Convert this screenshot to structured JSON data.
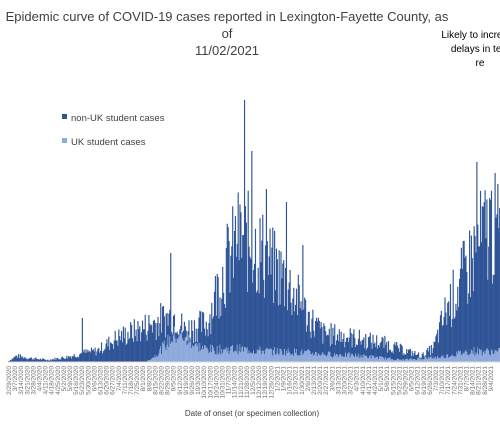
{
  "chart_data": {
    "type": "bar",
    "stacked": true,
    "title_line1": "Epidemic curve of COVID-19 cases reported in Lexington-Fayette County, as of",
    "title_line2": "11/02/2021",
    "annotation_lines": [
      "Likely to increase",
      "delays in test",
      "re"
    ],
    "xlabel": "Date of onset (or specimen collection)",
    "ylabel": "",
    "grid": false,
    "legend_position": "left",
    "series": [
      {
        "name": "non-UK student cases",
        "color": "#2F5597"
      },
      {
        "name": "UK student cases",
        "color": "#8FAADC"
      }
    ],
    "x_tick_labels": [
      "2/29/2020",
      "3/7/2020",
      "3/14/2020",
      "3/21/2020",
      "3/28/2020",
      "4/4/2020",
      "4/11/2020",
      "4/18/2020",
      "4/25/2020",
      "5/2/2020",
      "5/9/2020",
      "5/16/2020",
      "5/23/2020",
      "5/30/2020",
      "6/6/2020",
      "6/13/2020",
      "6/20/2020",
      "6/27/2020",
      "7/4/2020",
      "7/11/2020",
      "7/18/2020",
      "7/25/2020",
      "8/1/2020",
      "8/8/2020",
      "8/15/2020",
      "8/22/2020",
      "8/29/2020",
      "9/5/2020",
      "9/12/2020",
      "9/19/2020",
      "9/26/2020",
      "10/3/2020",
      "10/10/2020",
      "10/17/2020",
      "10/24/2020",
      "10/31/2020",
      "11/7/2020",
      "11/14/2020",
      "11/21/2020",
      "11/28/2020",
      "12/5/2020",
      "12/12/2020",
      "12/19/2020",
      "12/26/2020",
      "1/2/2021",
      "1/9/2021",
      "1/16/2021",
      "1/23/2021",
      "1/30/2021",
      "2/6/2021",
      "2/13/2021",
      "2/20/2021",
      "2/27/2021",
      "3/6/2021",
      "3/13/2021",
      "3/20/2021",
      "3/27/2021",
      "4/3/2021",
      "4/10/2021",
      "4/17/2021",
      "4/24/2021",
      "5/1/2021",
      "5/8/2021",
      "5/15/2021",
      "5/22/2021",
      "5/29/2021",
      "6/5/2021",
      "6/12/2021",
      "6/19/2021",
      "6/26/2021",
      "7/3/2021",
      "7/10/2021",
      "7/17/2021",
      "7/24/2021",
      "7/31/2021",
      "8/7/2021",
      "8/14/2021",
      "8/21/2021",
      "8/28/2021",
      "9/4/2021"
    ],
    "curve_profile": {
      "non_uk": [
        [
          0,
          1
        ],
        [
          8,
          6
        ],
        [
          20,
          4
        ],
        [
          40,
          2
        ],
        [
          60,
          5
        ],
        [
          76,
          9
        ],
        [
          90,
          11
        ],
        [
          110,
          24
        ],
        [
          130,
          31
        ],
        [
          150,
          40
        ],
        [
          170,
          47
        ],
        [
          178,
          32
        ],
        [
          190,
          35
        ],
        [
          202,
          38
        ],
        [
          212,
          72
        ],
        [
          222,
          98
        ],
        [
          234,
          122
        ],
        [
          246,
          118
        ],
        [
          258,
          108
        ],
        [
          270,
          92
        ],
        [
          280,
          84
        ],
        [
          294,
          62
        ],
        [
          305,
          44
        ],
        [
          320,
          28
        ],
        [
          340,
          26
        ],
        [
          360,
          22
        ],
        [
          380,
          19
        ],
        [
          400,
          12
        ],
        [
          420,
          6
        ],
        [
          432,
          14
        ],
        [
          445,
          52
        ],
        [
          460,
          80
        ],
        [
          478,
          118
        ],
        [
          490,
          136
        ],
        [
          500,
          126
        ]
      ],
      "uk": [
        [
          0,
          0
        ],
        [
          140,
          0
        ],
        [
          150,
          7
        ],
        [
          160,
          18
        ],
        [
          168,
          26
        ],
        [
          176,
          28
        ],
        [
          185,
          22
        ],
        [
          196,
          14
        ],
        [
          210,
          12
        ],
        [
          230,
          13
        ],
        [
          260,
          11
        ],
        [
          290,
          10
        ],
        [
          320,
          8
        ],
        [
          360,
          6
        ],
        [
          400,
          2
        ],
        [
          440,
          5
        ],
        [
          470,
          11
        ],
        [
          500,
          10
        ]
      ],
      "spikes": [
        [
          75,
          44
        ],
        [
          165,
          109
        ],
        [
          232,
          118
        ],
        [
          240,
          262
        ],
        [
          247,
          211
        ],
        [
          262,
          173
        ],
        [
          282,
          160
        ],
        [
          299,
          117
        ],
        [
          476,
          200
        ]
      ]
    }
  }
}
